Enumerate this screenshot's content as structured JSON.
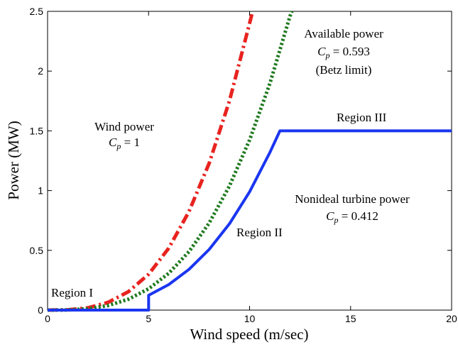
{
  "chart_data": {
    "type": "line",
    "title": "",
    "xlabel": "Wind speed (m/sec)",
    "ylabel": "Power (MW)",
    "xlim": [
      0,
      20
    ],
    "ylim": [
      0,
      2.5
    ],
    "xticks": [
      0,
      5,
      10,
      15,
      20
    ],
    "yticks": [
      0,
      0.5,
      1,
      1.5,
      2,
      2.5
    ],
    "xtick_labels": [
      "0",
      "5",
      "10",
      "15",
      "20"
    ],
    "ytick_labels": [
      "0",
      "0.5",
      "1",
      "1.5",
      "2",
      "2.5"
    ],
    "grid": false,
    "legend": "none",
    "series": [
      {
        "style": "dash-dot",
        "color": "#e8231f",
        "x": [
          0,
          1,
          2,
          3,
          4,
          5,
          6,
          7,
          8,
          9,
          10,
          10.15
        ],
        "y": [
          0,
          0.0024,
          0.0192,
          0.0648,
          0.154,
          0.3,
          0.519,
          0.824,
          1.229,
          1.75,
          2.4,
          2.5
        ]
      },
      {
        "style": "dotted",
        "color": "#1f7a1f",
        "x": [
          0,
          1,
          2,
          3,
          4,
          5,
          6,
          7,
          8,
          9,
          10,
          11,
          12,
          12.1
        ],
        "y": [
          0,
          0.0014,
          0.0114,
          0.0384,
          0.0911,
          0.178,
          0.308,
          0.489,
          0.729,
          1.038,
          1.424,
          1.895,
          2.46,
          2.5
        ]
      },
      {
        "style": "solid",
        "color": "#1a35f0",
        "x": [
          0,
          5,
          5,
          6,
          7,
          8,
          9,
          10,
          11,
          11.5,
          20
        ],
        "y": [
          0,
          0,
          0.124,
          0.214,
          0.34,
          0.508,
          0.722,
          0.99,
          1.318,
          1.5,
          1.5
        ]
      }
    ],
    "annotations": [
      {
        "id": "wind",
        "lines": [
          "Wind power",
          "Cp = 1"
        ]
      },
      {
        "id": "avail",
        "lines": [
          "Available power",
          "Cp = 0.593",
          "(Betz limit)"
        ]
      },
      {
        "id": "nonideal",
        "lines": [
          "Nonideal turbine power",
          "Cp = 0.412"
        ]
      },
      {
        "id": "region1",
        "lines": [
          "Region I"
        ]
      },
      {
        "id": "region2",
        "lines": [
          "Region II"
        ]
      },
      {
        "id": "region3",
        "lines": [
          "Region III"
        ]
      }
    ]
  }
}
